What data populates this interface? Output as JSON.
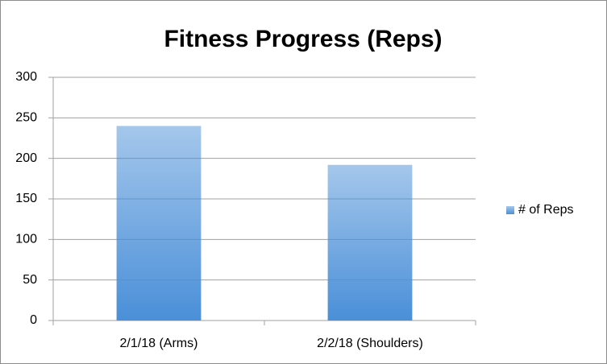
{
  "chart_data": {
    "type": "bar",
    "title": "Fitness Progress (Reps)",
    "categories": [
      "2/1/18 (Arms)",
      "2/2/18 (Shoulders)"
    ],
    "series": [
      {
        "name": "# of Reps",
        "color": "#4a8fd8",
        "values": [
          240,
          192
        ]
      }
    ],
    "ylim": [
      0,
      300
    ],
    "yticks": [
      0,
      50,
      100,
      150,
      200,
      250,
      300
    ],
    "grid": true,
    "legend": "right"
  }
}
